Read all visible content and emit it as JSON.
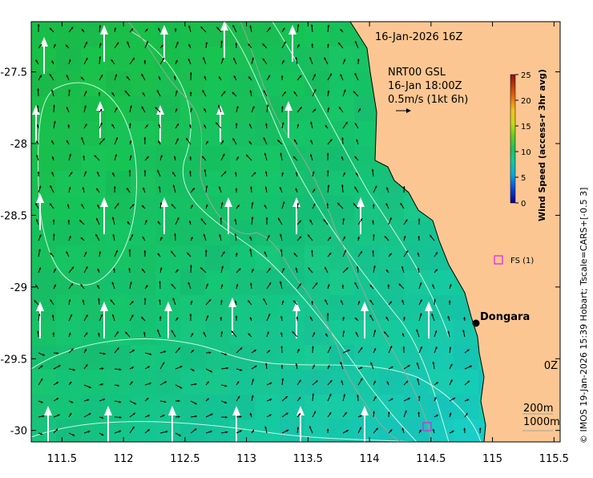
{
  "map": {
    "timestamp": "16-Jan-2026 16Z",
    "obs_title": "NRT00 GSL",
    "obs_time": "16-Jan 18:00Z",
    "current_scale": "0.5m/s (1kt 6h)",
    "side_credit": "© IMOS 19-Jan-2026 15:39 Hobart; Tscale=CARS+[-0.5 3]",
    "place_label": "Dongara",
    "station_label": "FS (1)",
    "partial_label": "0Z",
    "contour_labels": [
      "200m",
      "1000m"
    ],
    "x_ticks": [
      "111.5",
      "112",
      "112.5",
      "113",
      "113.5",
      "114",
      "114.5",
      "115",
      "115.5"
    ],
    "y_ticks": [
      "-27.5",
      "-28",
      "-28.5",
      "-29",
      "-29.5",
      "-30"
    ],
    "colors": {
      "land": "#fbc692",
      "ocean_green": "#17bf55",
      "ocean_teal": "#18cfb0",
      "station": "#e020e0"
    }
  },
  "colorbar": {
    "title": "Wind Speed (access-r 3hr avg)",
    "ticks": [
      "0",
      "5",
      "10",
      "15",
      "20",
      "25"
    ],
    "range": [
      0,
      25
    ]
  }
}
